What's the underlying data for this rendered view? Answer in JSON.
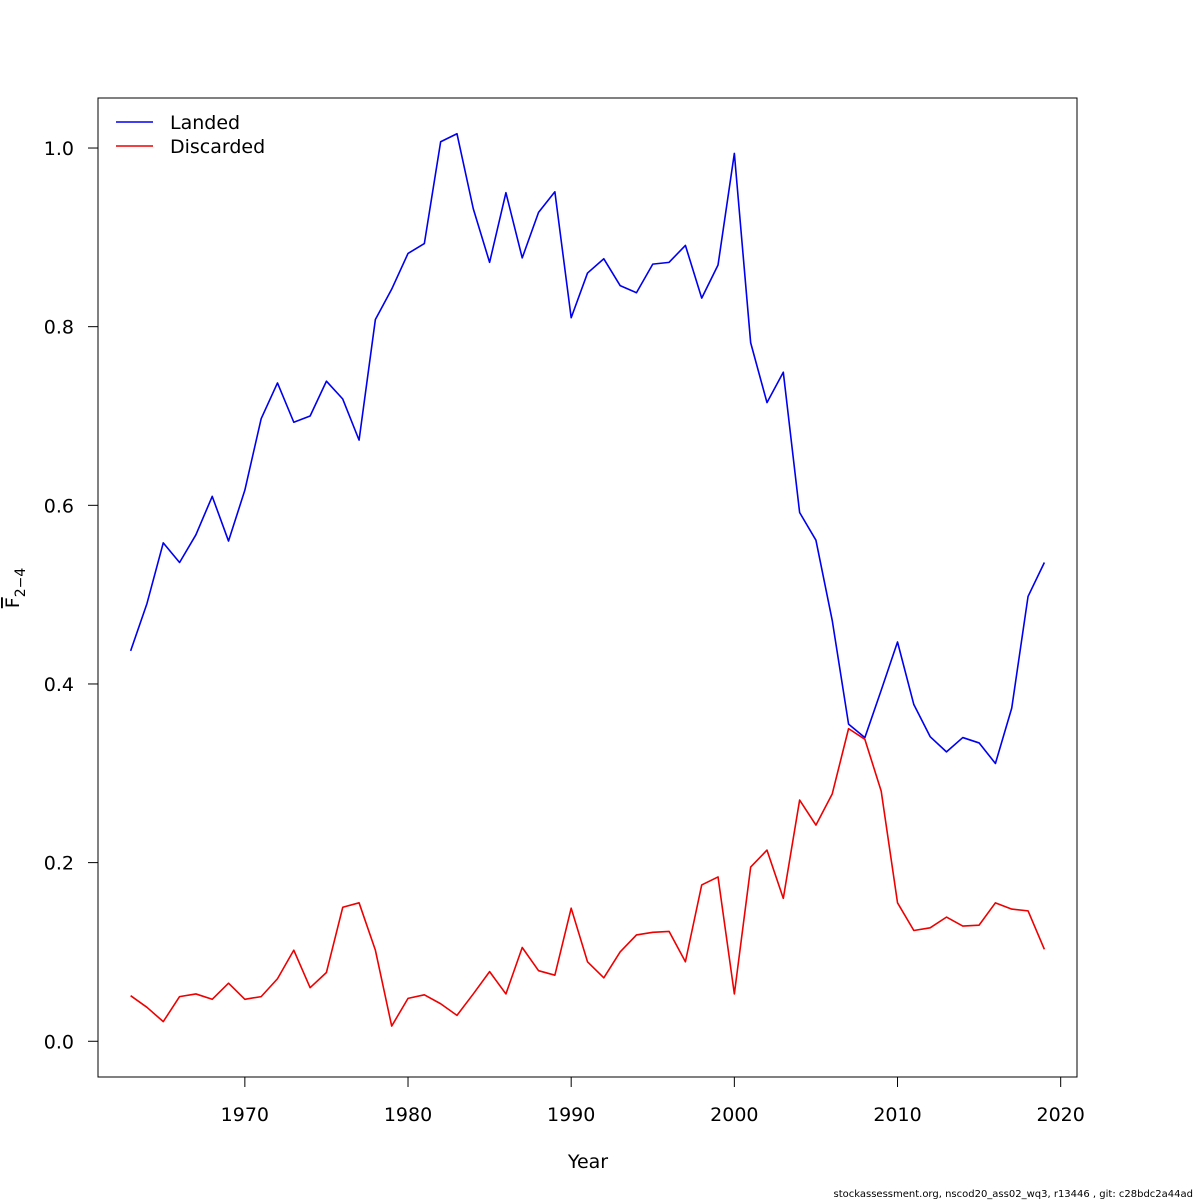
{
  "chart_data": {
    "type": "line",
    "xlabel": "Year",
    "ylabel": {
      "base": "F",
      "subscript": "2−4"
    },
    "xlim": [
      1961,
      2021
    ],
    "ylim": [
      -0.04,
      1.056
    ],
    "x_ticks": [
      1970,
      1980,
      1990,
      2000,
      2010,
      2020
    ],
    "y_ticks": [
      0.0,
      0.2,
      0.4,
      0.6,
      0.8,
      1.0
    ],
    "y_tick_labels": [
      "0.0",
      "0.2",
      "0.4",
      "0.6",
      "0.8",
      "1.0"
    ],
    "legend_position": "top-left",
    "x": [
      1963,
      1964,
      1965,
      1966,
      1967,
      1968,
      1969,
      1970,
      1971,
      1972,
      1973,
      1974,
      1975,
      1976,
      1977,
      1978,
      1979,
      1980,
      1981,
      1982,
      1983,
      1984,
      1985,
      1986,
      1987,
      1988,
      1989,
      1990,
      1991,
      1992,
      1993,
      1994,
      1995,
      1996,
      1997,
      1998,
      1999,
      2000,
      2001,
      2002,
      2003,
      2004,
      2005,
      2006,
      2007,
      2008,
      2009,
      2010,
      2011,
      2012,
      2013,
      2014,
      2015,
      2016,
      2017,
      2018,
      2019
    ],
    "series": [
      {
        "name": "Landed",
        "color": "#0000ee",
        "values": [
          0.437,
          0.49,
          0.558,
          0.536,
          0.567,
          0.61,
          0.56,
          0.617,
          0.697,
          0.737,
          0.693,
          0.7,
          0.739,
          0.719,
          0.673,
          0.808,
          0.842,
          0.882,
          0.893,
          1.007,
          1.016,
          0.932,
          0.872,
          0.95,
          0.877,
          0.928,
          0.951,
          0.81,
          0.86,
          0.876,
          0.846,
          0.838,
          0.87,
          0.872,
          0.891,
          0.832,
          0.869,
          0.994,
          0.782,
          0.715,
          0.749,
          0.592,
          0.561,
          0.471,
          0.355,
          0.34,
          0.393,
          0.447,
          0.377,
          0.341,
          0.324,
          0.34,
          0.334,
          0.311,
          0.373,
          0.498,
          0.536
        ]
      },
      {
        "name": "Discarded",
        "color": "#ee0000",
        "values": [
          0.051,
          0.038,
          0.022,
          0.05,
          0.053,
          0.047,
          0.065,
          0.047,
          0.05,
          0.07,
          0.102,
          0.06,
          0.077,
          0.15,
          0.155,
          0.102,
          0.017,
          0.048,
          0.052,
          0.042,
          0.029,
          0.053,
          0.078,
          0.053,
          0.105,
          0.079,
          0.074,
          0.149,
          0.089,
          0.071,
          0.1,
          0.119,
          0.122,
          0.123,
          0.089,
          0.175,
          0.184,
          0.053,
          0.195,
          0.214,
          0.16,
          0.27,
          0.242,
          0.277,
          0.35,
          0.338,
          0.28,
          0.155,
          0.124,
          0.127,
          0.139,
          0.129,
          0.13,
          0.155,
          0.148,
          0.146,
          0.103
        ]
      }
    ]
  },
  "footer": "stockassessment.org, nscod20_ass02_wq3, r13446 , git: c28bdc2a44ad"
}
